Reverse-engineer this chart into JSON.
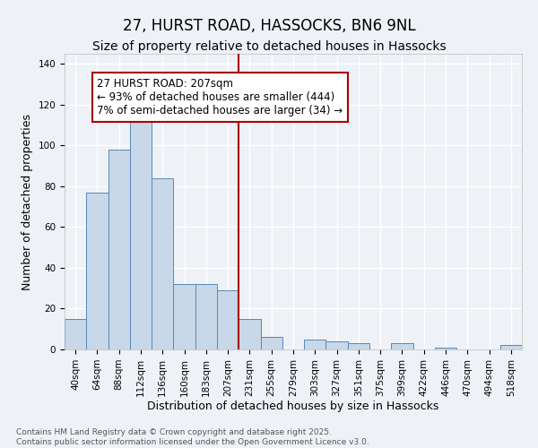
{
  "title": "27, HURST ROAD, HASSOCKS, BN6 9NL",
  "subtitle": "Size of property relative to detached houses in Hassocks",
  "xlabel": "Distribution of detached houses by size in Hassocks",
  "ylabel": "Number of detached properties",
  "categories": [
    "40sqm",
    "64sqm",
    "88sqm",
    "112sqm",
    "136sqm",
    "160sqm",
    "183sqm",
    "207sqm",
    "231sqm",
    "255sqm",
    "279sqm",
    "303sqm",
    "327sqm",
    "351sqm",
    "375sqm",
    "399sqm",
    "422sqm",
    "446sqm",
    "470sqm",
    "494sqm",
    "518sqm"
  ],
  "values": [
    15,
    77,
    98,
    113,
    84,
    32,
    32,
    29,
    15,
    6,
    0,
    5,
    4,
    3,
    0,
    3,
    0,
    1,
    0,
    0,
    2
  ],
  "bar_color": "#c8d8e8",
  "bar_edge_color": "#5588bb",
  "vline_color": "#aa0000",
  "annotation_text": "27 HURST ROAD: 207sqm\n← 93% of detached houses are smaller (444)\n7% of semi-detached houses are larger (34) →",
  "annotation_box_color": "#ffffff",
  "annotation_box_edge_color": "#aa0000",
  "ylim": [
    0,
    145
  ],
  "yticks": [
    0,
    20,
    40,
    60,
    80,
    100,
    120,
    140
  ],
  "background_color": "#eef2f7",
  "footer_text": "Contains HM Land Registry data © Crown copyright and database right 2025.\nContains public sector information licensed under the Open Government Licence v3.0.",
  "title_fontsize": 12,
  "subtitle_fontsize": 10,
  "axis_label_fontsize": 9,
  "tick_fontsize": 7.5,
  "annotation_fontsize": 8.5,
  "footer_fontsize": 6.5
}
